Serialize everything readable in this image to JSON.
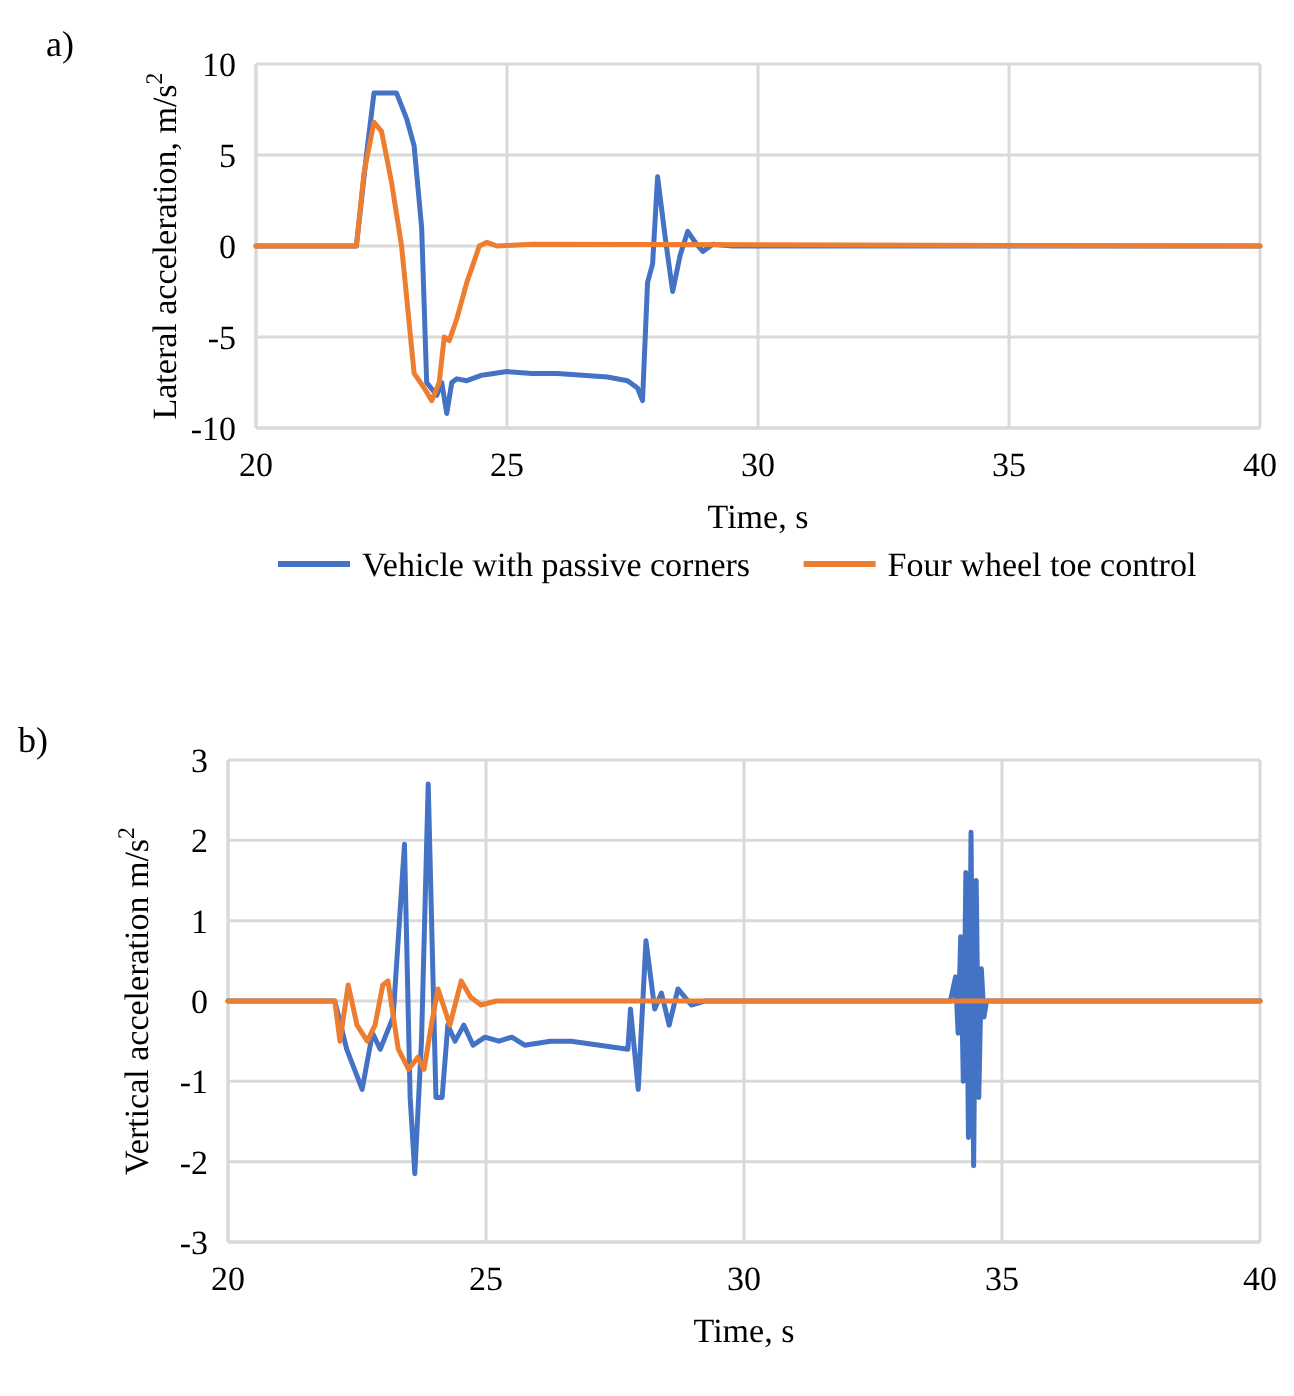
{
  "chart_data": [
    {
      "type": "line",
      "xlabel": "Time, s",
      "ylabel": "Lateral acceleration, m/s$^{2}$",
      "annotations": [
        "a)"
      ],
      "xlim": [
        20,
        40
      ],
      "xticks": [
        20,
        25,
        30,
        35,
        40
      ],
      "ylim": [
        -10,
        10
      ],
      "yticks": [
        -10,
        -5,
        0,
        5,
        10
      ],
      "grid": true,
      "legend": "bottom",
      "line_style": "solid",
      "marker": "none",
      "series": [
        {
          "name": "Vehicle with passive corners",
          "color": "#4472c4",
          "x": [
            20,
            22.0,
            22.2,
            22.35,
            22.8,
            23.0,
            23.15,
            23.3,
            23.4,
            23.6,
            23.7,
            23.8,
            23.9,
            24.0,
            24.2,
            24.5,
            25.0,
            25.5,
            26.0,
            26.5,
            27.0,
            27.4,
            27.6,
            27.7,
            27.8,
            27.9,
            28.0,
            28.15,
            28.3,
            28.45,
            28.6,
            28.75,
            28.9,
            29.1,
            29.5,
            40
          ],
          "values": [
            0,
            0,
            5,
            8.4,
            8.4,
            7,
            5.5,
            1,
            -7.5,
            -8.2,
            -7.5,
            -9.2,
            -7.5,
            -7.3,
            -7.4,
            -7.1,
            -6.9,
            -7,
            -7,
            -7.1,
            -7.2,
            -7.4,
            -7.8,
            -8.5,
            -2,
            -1,
            3.8,
            0.5,
            -2.5,
            -0.5,
            0.8,
            0.2,
            -0.3,
            0.1,
            0,
            0
          ]
        },
        {
          "name": "Four wheel toe control",
          "color": "#ed7d31",
          "x": [
            20,
            22.0,
            22.15,
            22.35,
            22.5,
            22.7,
            22.9,
            23.15,
            23.35,
            23.5,
            23.65,
            23.75,
            23.85,
            24.0,
            24.2,
            24.45,
            24.6,
            24.8,
            25.5,
            40
          ],
          "values": [
            0,
            0,
            4,
            6.8,
            6.3,
            3.5,
            0,
            -7,
            -7.8,
            -8.5,
            -7.5,
            -5,
            -5.2,
            -4,
            -2,
            0,
            0.2,
            0,
            0.1,
            0
          ]
        }
      ]
    },
    {
      "type": "line",
      "xlabel": "Time, s",
      "ylabel": "Vertical acceleration m/s$^{2}$",
      "annotations": [
        "b)"
      ],
      "xlim": [
        20,
        40
      ],
      "xticks": [
        20,
        25,
        30,
        35,
        40
      ],
      "ylim": [
        -3,
        3
      ],
      "yticks": [
        -3,
        -2,
        -1,
        0,
        1,
        2,
        3
      ],
      "grid": true,
      "line_style": "solid",
      "marker": "none",
      "series": [
        {
          "color": "#4472c4",
          "x": [
            20,
            22.07,
            22.3,
            22.6,
            22.8,
            22.95,
            23.2,
            23.42,
            23.53,
            23.62,
            23.75,
            23.88,
            24.03,
            24.15,
            24.26,
            24.4,
            24.57,
            24.75,
            24.98,
            25.25,
            25.5,
            25.75,
            26.25,
            26.65,
            27.2,
            27.75,
            27.8,
            27.95,
            28.1,
            28.27,
            28.4,
            28.55,
            28.72,
            28.98,
            29.24,
            34.0,
            34.1,
            34.15,
            34.2,
            34.25,
            34.3,
            34.35,
            34.4,
            34.45,
            34.5,
            34.55,
            34.6,
            34.65,
            34.7,
            40
          ],
          "values": [
            0,
            0,
            -0.6,
            -1.1,
            -0.4,
            -0.6,
            -0.2,
            1.95,
            -1.2,
            -2.15,
            -0.5,
            2.7,
            -1.2,
            -1.2,
            -0.3,
            -0.5,
            -0.3,
            -0.55,
            -0.45,
            -0.5,
            -0.45,
            -0.55,
            -0.5,
            -0.5,
            -0.55,
            -0.6,
            -0.1,
            -1.1,
            0.75,
            -0.1,
            0.1,
            -0.3,
            0.15,
            -0.05,
            0,
            0,
            0.3,
            -0.4,
            0.8,
            -1,
            1.6,
            -1.7,
            2.1,
            -2.05,
            1.5,
            -1.2,
            0.4,
            -0.2,
            0,
            0
          ]
        },
        {
          "color": "#ed7d31",
          "x": [
            20,
            22.07,
            22.17,
            22.33,
            22.5,
            22.7,
            22.85,
            23.0,
            23.1,
            23.3,
            23.5,
            23.68,
            23.8,
            23.94,
            24.07,
            24.3,
            24.52,
            24.7,
            24.9,
            25.2,
            40
          ],
          "values": [
            0,
            0,
            -0.5,
            0.2,
            -0.3,
            -0.5,
            -0.3,
            0.2,
            0.25,
            -0.6,
            -0.85,
            -0.7,
            -0.85,
            -0.3,
            0.15,
            -0.3,
            0.25,
            0.05,
            -0.05,
            0,
            0
          ]
        }
      ]
    }
  ]
}
